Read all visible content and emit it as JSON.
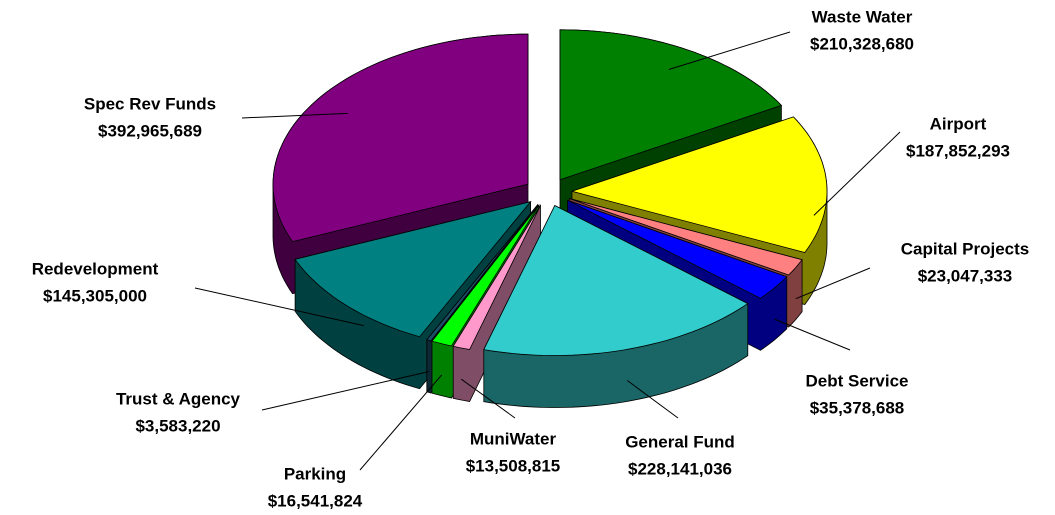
{
  "chart_data": {
    "type": "pie",
    "categories": [
      "Waste Water",
      "Airport",
      "Capital Projects",
      "Debt Service",
      "General Fund",
      "MuniWater",
      "Parking",
      "Trust & Agency",
      "Redevelopment",
      "Spec Rev Funds"
    ],
    "values": [
      210328680,
      187852293,
      23047333,
      35378688,
      228141036,
      13508815,
      16541824,
      3583220,
      145305000,
      392965689
    ],
    "value_labels": [
      "$210,328,680",
      "$187,852,293",
      "$23,047,333",
      "$35,378,688",
      "$228,141,036",
      "$13,508,815",
      "$16,541,824",
      "$3,583,220",
      "$145,305,000",
      "$392,965,689"
    ],
    "colors": [
      "#008000",
      "#ffff00",
      "#ff8080",
      "#0000ff",
      "#33cccc",
      "#ff99cc",
      "#00ff00",
      "#1a4d66",
      "#008080",
      "#800080"
    ]
  }
}
